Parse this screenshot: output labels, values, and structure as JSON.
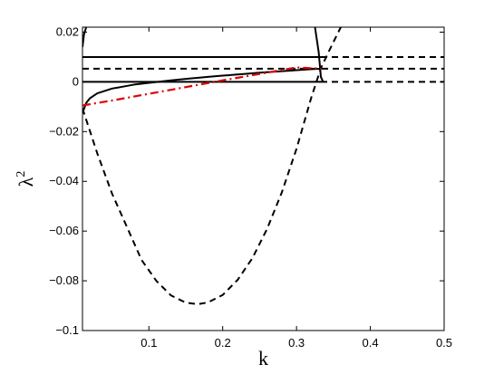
{
  "chart_data": {
    "type": "line",
    "title": "",
    "xlabel": "k",
    "ylabel": "λ",
    "ylabel_superscript": "2",
    "xlim": [
      0.01,
      0.5
    ],
    "ylim": [
      -0.1,
      0.022
    ],
    "xticks": [
      0.1,
      0.2,
      0.3,
      0.4,
      0.5
    ],
    "xtick_labels": [
      "0.1",
      "0.2",
      "0.3",
      "0.4",
      "0.5"
    ],
    "yticks": [
      -0.1,
      -0.08,
      -0.06,
      -0.04,
      -0.02,
      0,
      0.02
    ],
    "ytick_labels": [
      "−0.1",
      "−0.08",
      "−0.06",
      "−0.04",
      "−0.02",
      "0",
      "0.02"
    ],
    "grid": false,
    "legend": "none",
    "colors": {
      "black": "#000000",
      "red": "#e00000"
    },
    "series": [
      {
        "style": "solid",
        "color": "#000000",
        "x": [
          0.01,
          0.333
        ],
        "y": [
          0.01,
          0.01
        ]
      },
      {
        "style": "solid",
        "color": "#000000",
        "x": [
          0.01,
          0.333
        ],
        "y": [
          0.0,
          0.0
        ]
      },
      {
        "style": "dashed",
        "color": "#000000",
        "x": [
          0.01,
          0.5
        ],
        "y": [
          0.0053,
          0.0053
        ]
      },
      {
        "style": "dashed",
        "color": "#000000",
        "x": [
          0.333,
          0.5
        ],
        "y": [
          0.01,
          0.01
        ]
      },
      {
        "style": "dashed",
        "color": "#000000",
        "x": [
          0.333,
          0.5
        ],
        "y": [
          0.0,
          0.0
        ]
      },
      {
        "style": "dashed",
        "color": "#000000",
        "x": [
          0.01,
          0.03,
          0.05,
          0.07,
          0.09,
          0.11,
          0.13,
          0.15,
          0.1667,
          0.18,
          0.2,
          0.22,
          0.24,
          0.26,
          0.28,
          0.3,
          0.32,
          0.333,
          0.345,
          0.36
        ],
        "y": [
          -0.0107,
          -0.0287,
          -0.0449,
          -0.0582,
          -0.0716,
          -0.08,
          -0.0859,
          -0.0888,
          -0.0894,
          -0.0887,
          -0.0857,
          -0.0797,
          -0.071,
          -0.0592,
          -0.0445,
          -0.0269,
          -0.0063,
          0.0055,
          0.013,
          0.022
        ]
      },
      {
        "style": "solid",
        "color": "#000000",
        "x": [
          0.01,
          0.015,
          0.02,
          0.03,
          0.05,
          0.08,
          0.1,
          0.13,
          0.15,
          0.18,
          0.2,
          0.23,
          0.25,
          0.28,
          0.3,
          0.32,
          0.333
        ],
        "y": [
          -0.0125,
          -0.0085,
          -0.0066,
          -0.0046,
          -0.0027,
          -0.0011,
          -0.0004,
          0.0006,
          0.0012,
          0.002,
          0.0025,
          0.0032,
          0.0037,
          0.0043,
          0.0047,
          0.0051,
          0.0053
        ]
      },
      {
        "style": "solid",
        "color": "#000000",
        "x": [
          0.01,
          0.012,
          0.015
        ],
        "y": [
          0.014,
          0.019,
          0.022
        ]
      },
      {
        "style": "solid",
        "color": "#000000",
        "x": [
          0.325,
          0.33,
          0.333,
          0.336
        ],
        "y": [
          0.022,
          0.012,
          0.002,
          0.0
        ]
      },
      {
        "style": "dashdot",
        "color": "#e00000",
        "x": [
          0.01,
          0.05,
          0.1,
          0.15,
          0.2,
          0.25,
          0.3,
          0.333
        ],
        "y": [
          -0.0095,
          -0.0075,
          -0.0048,
          -0.0021,
          0.0006,
          0.0032,
          0.0058,
          0.0053
        ]
      }
    ]
  }
}
